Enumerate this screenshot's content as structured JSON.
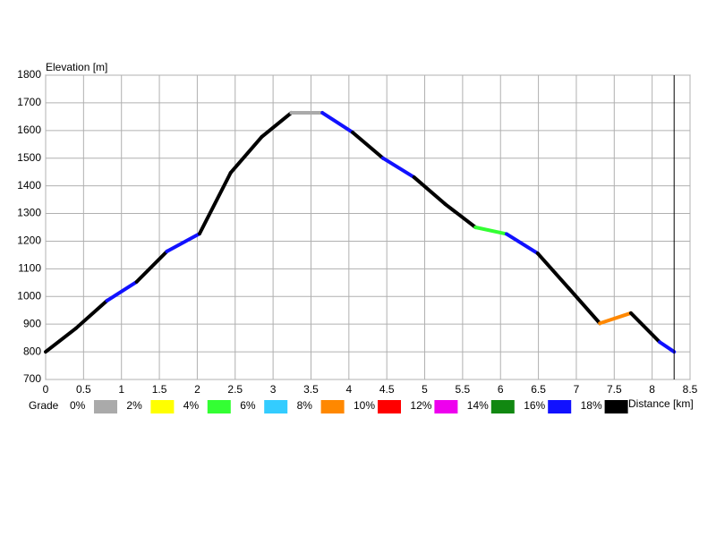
{
  "chart_data": {
    "type": "line",
    "y_label": "Elevation [m]",
    "x_label": "Distance [km]",
    "legend_title": "Grade",
    "legend": [
      {
        "label": "0%",
        "color": "#aaaaaa"
      },
      {
        "label": "2%",
        "color": "#ffff00"
      },
      {
        "label": "4%",
        "color": "#33ff33"
      },
      {
        "label": "6%",
        "color": "#33ccff"
      },
      {
        "label": "8%",
        "color": "#ff8800"
      },
      {
        "label": "10%",
        "color": "#ff0000"
      },
      {
        "label": "12%",
        "color": "#ee00ee"
      },
      {
        "label": "14%",
        "color": "#118811"
      },
      {
        "label": "16%",
        "color": "#1111ff"
      },
      {
        "label": "18%",
        "color": "#000000"
      }
    ],
    "series": [
      {
        "x": [
          0,
          0.4,
          0.81,
          1.2,
          1.6,
          2.03,
          2.44,
          2.85,
          3.24,
          3.65,
          4.05,
          4.45,
          4.86,
          5.27,
          5.67,
          6.08,
          6.49,
          6.9,
          7.31,
          7.72,
          8.1,
          8.29
        ],
        "values": [
          800,
          885,
          985,
          1053,
          1163,
          1227,
          1447,
          1577,
          1664,
          1664,
          1593,
          1500,
          1431,
          1334,
          1250,
          1226,
          1156,
          1030,
          903,
          940,
          835,
          800
        ],
        "segment_colors": [
          "#000000",
          "#000000",
          "#1111ff",
          "#000000",
          "#1111ff",
          "#000000",
          "#000000",
          "#000000",
          "#aaaaaa",
          "#1111ff",
          "#000000",
          "#1111ff",
          "#000000",
          "#000000",
          "#33ff33",
          "#1111ff",
          "#000000",
          "#000000",
          "#ff8800",
          "#000000",
          "#1111ff"
        ]
      }
    ],
    "marker_x": 8.29,
    "xlim": [
      0,
      8.5
    ],
    "xticks": [
      0,
      0.5,
      1,
      1.5,
      2,
      2.5,
      3,
      3.5,
      4,
      4.5,
      5,
      5.5,
      6,
      6.5,
      7,
      7.5,
      8,
      8.5
    ],
    "ylim": [
      700,
      1800
    ],
    "yticks": [
      700,
      800,
      900,
      1000,
      1100,
      1200,
      1300,
      1400,
      1500,
      1600,
      1700,
      1800
    ],
    "grid": true
  }
}
